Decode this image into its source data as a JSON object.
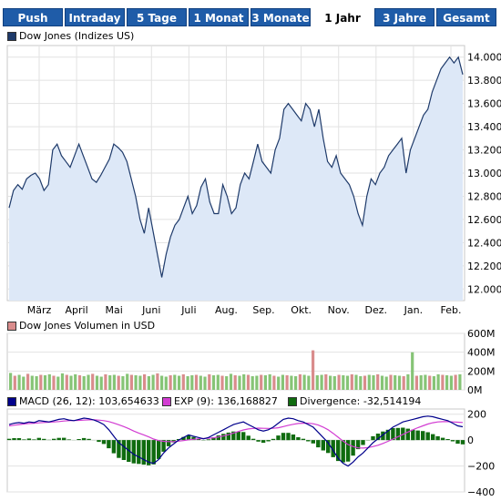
{
  "tabs": [
    "Push",
    "Intraday",
    "5 Tage",
    "1 Monat",
    "3 Monate",
    "1 Jahr",
    "3 Jahre",
    "Gesamt"
  ],
  "active_tab": "1 Jahr",
  "colors": {
    "tab_bg": "#1f5ca8",
    "price_line": "#1e3a6a",
    "price_fill": "#dde8f7",
    "macd": "#00008b",
    "exp": "#d23cd2",
    "divergence": "#0f6b0f",
    "vol_up": "#86c476",
    "vol_down": "#d98c8c"
  },
  "chart_data": [
    {
      "type": "area",
      "legend": "Dow Jones (Indizes US)",
      "x_labels": [
        "März",
        "April",
        "Mai",
        "Juni",
        "Juli",
        "Aug.",
        "Sep.",
        "Okt.",
        "Nov.",
        "Dez.",
        "Jan.",
        "Feb."
      ],
      "yticks": [
        12000,
        12200,
        12400,
        12600,
        12800,
        13000,
        13200,
        13400,
        13600,
        13800,
        14000
      ],
      "ytick_labels": [
        "12.000",
        "12.200",
        "12.400",
        "12.600",
        "12.800",
        "13.000",
        "13.200",
        "13.400",
        "13.600",
        "13.800",
        "14.000"
      ],
      "ylim": [
        11900,
        14100
      ],
      "grid": true,
      "values": [
        12700,
        12850,
        12900,
        12860,
        12950,
        12980,
        13000,
        12950,
        12850,
        12900,
        13200,
        13250,
        13150,
        13100,
        13050,
        13150,
        13250,
        13150,
        13050,
        12950,
        12920,
        12980,
        13050,
        13120,
        13250,
        13220,
        13180,
        13100,
        12950,
        12800,
        12600,
        12480,
        12700,
        12500,
        12300,
        12100,
        12300,
        12450,
        12550,
        12600,
        12700,
        12800,
        12650,
        12720,
        12880,
        12950,
        12750,
        12650,
        12650,
        12900,
        12800,
        12650,
        12700,
        12900,
        13000,
        12950,
        13100,
        13250,
        13100,
        13050,
        13000,
        13200,
        13300,
        13550,
        13600,
        13550,
        13500,
        13450,
        13600,
        13550,
        13400,
        13550,
        13300,
        13100,
        13050,
        13150,
        13000,
        12950,
        12900,
        12800,
        12650,
        12550,
        12800,
        12950,
        12900,
        13000,
        13050,
        13150,
        13200,
        13250,
        13300,
        13000,
        13200,
        13300,
        13400,
        13500,
        13550,
        13700,
        13800,
        13900,
        13950,
        14000,
        13950,
        14000,
        13850
      ]
    },
    {
      "type": "bar",
      "legend": "Dow Jones Volumen in USD",
      "yticks": [
        0,
        200,
        400,
        600
      ],
      "ytick_labels": [
        "0M",
        "200M",
        "400M",
        "600M"
      ],
      "ylim": [
        0,
        600
      ],
      "grid": true,
      "values": [
        180,
        150,
        160,
        140,
        170,
        150,
        145,
        160,
        155,
        165,
        150,
        140,
        175,
        160,
        150,
        165,
        155,
        145,
        160,
        170,
        150,
        140,
        165,
        155,
        160,
        150,
        145,
        170,
        160,
        155,
        150,
        165,
        145,
        160,
        175,
        150,
        140,
        155,
        160,
        150,
        165,
        145,
        155,
        160,
        150,
        140,
        165,
        155,
        160,
        150,
        145,
        170,
        155,
        150,
        165,
        160,
        145,
        150,
        160,
        155,
        165,
        150,
        140,
        160,
        155,
        150,
        145,
        165,
        160,
        150,
        420,
        155,
        160,
        165,
        150,
        145,
        160,
        155,
        150,
        165,
        160,
        145,
        150,
        160,
        155,
        165,
        150,
        140,
        160,
        155,
        150,
        145,
        165,
        400,
        150,
        155,
        160,
        150,
        145,
        165,
        160,
        155,
        150,
        160,
        165
      ]
    },
    {
      "type": "line",
      "series_labels": [
        "MACD (26, 12): 103,654633",
        "EXP (9): 136,168827",
        "Divergence: -32,514194"
      ],
      "yticks": [
        -400,
        -200,
        0,
        200
      ],
      "ytick_labels": [
        "−400",
        "−200",
        "0",
        "200"
      ],
      "ylim": [
        -400,
        240
      ],
      "grid": true,
      "macd": [
        120,
        130,
        135,
        130,
        140,
        135,
        150,
        145,
        140,
        150,
        160,
        165,
        155,
        150,
        160,
        170,
        165,
        155,
        140,
        120,
        80,
        30,
        -20,
        -50,
        -80,
        -110,
        -130,
        -150,
        -170,
        -180,
        -150,
        -100,
        -60,
        -30,
        0,
        20,
        40,
        30,
        20,
        10,
        20,
        40,
        60,
        80,
        100,
        120,
        130,
        140,
        120,
        100,
        80,
        70,
        80,
        100,
        130,
        160,
        170,
        165,
        150,
        140,
        120,
        100,
        60,
        20,
        -20,
        -80,
        -140,
        -180,
        -200,
        -170,
        -130,
        -100,
        -60,
        -20,
        10,
        40,
        70,
        100,
        120,
        140,
        150,
        160,
        170,
        180,
        185,
        180,
        170,
        160,
        150,
        130,
        110,
        103
      ],
      "exp": [
        110,
        115,
        120,
        125,
        128,
        130,
        133,
        136,
        138,
        140,
        143,
        147,
        150,
        151,
        152,
        154,
        156,
        156,
        154,
        150,
        143,
        132,
        118,
        104,
        88,
        70,
        54,
        40,
        25,
        8,
        -4,
        -10,
        -12,
        -12,
        -8,
        -4,
        2,
        6,
        10,
        12,
        14,
        18,
        24,
        32,
        42,
        54,
        66,
        78,
        86,
        90,
        92,
        91,
        90,
        91,
        95,
        104,
        114,
        122,
        128,
        130,
        130,
        126,
        116,
        100,
        80,
        52,
        22,
        -8,
        -34,
        -50,
        -60,
        -62,
        -58,
        -50,
        -40,
        -26,
        -10,
        8,
        26,
        44,
        62,
        80,
        96,
        110,
        124,
        134,
        140,
        142,
        142,
        140,
        138,
        136
      ],
      "divergence": [
        10,
        15,
        15,
        5,
        12,
        5,
        17,
        9,
        2,
        10,
        17,
        18,
        5,
        -1,
        8,
        16,
        9,
        -1,
        -14,
        -30,
        -63,
        -102,
        -138,
        -154,
        -168,
        -180,
        -184,
        -190,
        -195,
        -188,
        -146,
        -90,
        -48,
        -18,
        8,
        24,
        38,
        24,
        10,
        -2,
        6,
        22,
        36,
        48,
        58,
        66,
        64,
        62,
        34,
        10,
        -12,
        -21,
        -10,
        9,
        35,
        56,
        56,
        43,
        22,
        10,
        -10,
        -26,
        -56,
        -80,
        -100,
        -132,
        -162,
        -172,
        -166,
        -120,
        -70,
        -38,
        -2,
        30,
        50,
        66,
        80,
        92,
        94,
        96,
        88,
        80,
        74,
        70,
        61,
        46,
        30,
        18,
        8,
        -10,
        -28,
        -33
      ]
    }
  ]
}
